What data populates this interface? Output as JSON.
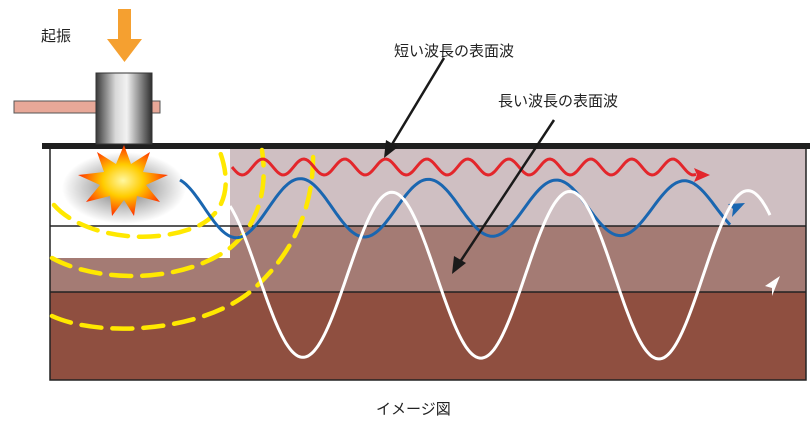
{
  "labels": {
    "excitation": "起振",
    "short_wave": "短い波長の表面波",
    "long_wave": "長い波長の表面波",
    "caption": "イメージ図"
  },
  "colors": {
    "layer_top": "#cfbfc2",
    "layer_mid": "#a47b74",
    "layer_bottom": "#8f4f40",
    "short_wave": "#e3262b",
    "mid_wave": "#1a66b0",
    "long_wave": "#ffffff",
    "wavefront": "#ffe800",
    "arrow_down": "#f5a030",
    "plate": "#e8a898"
  }
}
